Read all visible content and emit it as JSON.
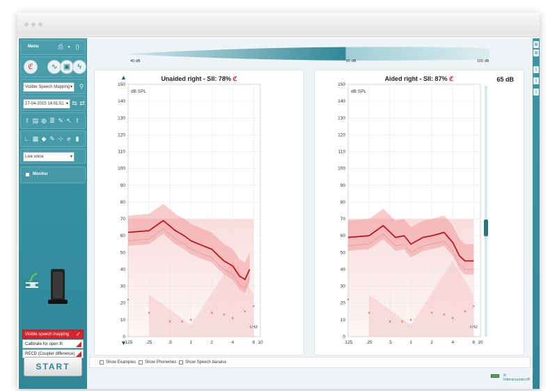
{
  "sidebar": {
    "menu_label": "Menu",
    "program_select": "Visible Speech Mapping",
    "datetime_select": "27-04-2015 14:01:51",
    "signal_select": "Live voice",
    "monitor_label": "Monitor",
    "programs": [
      {
        "label": "Visible speech mapping",
        "active": true,
        "status": "check-icon"
      },
      {
        "label": "Calibrate for open fit",
        "active": false,
        "status": "flag-icon"
      },
      {
        "label": "RECD (Coupler difference)",
        "active": false,
        "status": "flag-icon"
      }
    ],
    "start_label": "START"
  },
  "level_slider": {
    "min_label": "40 dB",
    "mid_label": "65 dB",
    "max_label": "100 dB",
    "value_db": 65
  },
  "graphs": [
    {
      "id": "unaided",
      "title": "Unaided right - SII: 78%",
      "ear_icon": "right-ear-icon",
      "y_unit": "dB SPL",
      "x_unit": "kHz",
      "y_ticks": [
        "150",
        "140",
        "130",
        "120",
        "110",
        "100",
        "90",
        "80",
        "70",
        "60",
        "50",
        "40",
        "30",
        "20",
        "10",
        "0"
      ],
      "x_ticks": [
        ".125",
        ".25",
        ".5",
        "1",
        "2",
        "4",
        "8",
        "10"
      ]
    },
    {
      "id": "aided",
      "title": "Aided right - SII: 87%",
      "ear_icon": "right-ear-icon",
      "y_unit": "dB SPL",
      "x_unit": "kHz",
      "level_label": "65 dB",
      "y_ticks": [
        "150",
        "140",
        "130",
        "120",
        "110",
        "100",
        "90",
        "80",
        "70",
        "60",
        "50",
        "40",
        "30",
        "20",
        "10",
        "0"
      ],
      "x_ticks": [
        ".125",
        ".25",
        ".5",
        "1",
        "2",
        "4",
        "8",
        "10"
      ]
    }
  ],
  "options": [
    {
      "label": "Show Examples",
      "checked": false
    },
    {
      "label": "Show Phonemes",
      "checked": false
    },
    {
      "label": "Show Speech banana",
      "checked": false
    }
  ],
  "status": {
    "brand": "© Interacoustics®"
  },
  "chart_data": [
    {
      "type": "line",
      "title": "Unaided right - SII: 78%",
      "ylabel": "dB SPL",
      "xlabel": "kHz",
      "ylim": [
        0,
        150
      ],
      "x_ticks": [
        0.125,
        0.25,
        0.5,
        1,
        2,
        4,
        8,
        10
      ],
      "series": [
        {
          "values": [
            [
              0.125,
              62
            ],
            [
              0.25,
              63
            ],
            [
              0.4,
              69
            ],
            [
              0.6,
              63
            ],
            [
              0.8,
              60
            ],
            [
              1,
              57
            ],
            [
              1.5,
              54
            ],
            [
              2,
              52
            ],
            [
              2.5,
              48
            ],
            [
              3,
              45
            ],
            [
              4,
              42
            ],
            [
              5,
              36
            ],
            [
              6,
              34
            ],
            [
              7,
              40
            ]
          ]
        }
      ],
      "thresholds_x": [
        [
          0.125,
          22
        ],
        [
          0.25,
          14
        ],
        [
          0.5,
          9
        ],
        [
          0.75,
          9
        ],
        [
          1,
          10
        ],
        [
          2,
          14
        ],
        [
          3,
          13
        ],
        [
          4,
          11
        ],
        [
          6,
          15
        ],
        [
          8,
          18
        ]
      ]
    },
    {
      "type": "line",
      "title": "Aided right - SII: 87%",
      "ylabel": "dB SPL",
      "xlabel": "kHz",
      "ylim": [
        0,
        150
      ],
      "x_ticks": [
        0.125,
        0.25,
        0.5,
        1,
        2,
        4,
        8,
        10
      ],
      "series": [
        {
          "values": [
            [
              0.125,
              59
            ],
            [
              0.25,
              60
            ],
            [
              0.4,
              66
            ],
            [
              0.6,
              59
            ],
            [
              0.8,
              60
            ],
            [
              1,
              55
            ],
            [
              1.5,
              59
            ],
            [
              2,
              60
            ],
            [
              2.5,
              61
            ],
            [
              3,
              62
            ],
            [
              4,
              56
            ],
            [
              5,
              48
            ],
            [
              6,
              45
            ],
            [
              7,
              45
            ],
            [
              8,
              45
            ]
          ]
        }
      ],
      "thresholds_x": [
        [
          0.125,
          22
        ],
        [
          0.25,
          14
        ],
        [
          0.5,
          9
        ],
        [
          0.75,
          9
        ],
        [
          1,
          10
        ],
        [
          2,
          14
        ],
        [
          3,
          13
        ],
        [
          4,
          11
        ],
        [
          6,
          15
        ],
        [
          8,
          18
        ]
      ]
    }
  ]
}
